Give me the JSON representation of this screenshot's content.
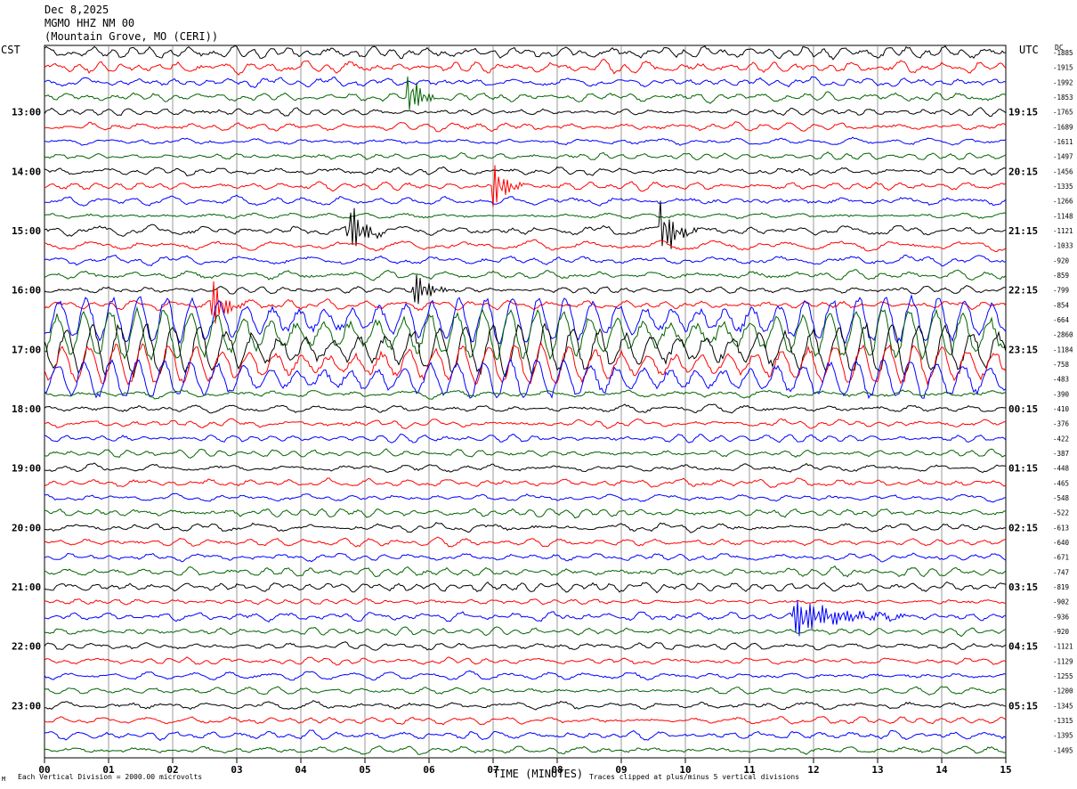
{
  "header": {
    "date": "Dec 8,2025",
    "station": "MGMO HHZ NM 00",
    "location": "(Mountain Grove, MO (CERI))"
  },
  "left_tz": "CST",
  "right_tz": "UTC",
  "dc_label": "DC",
  "footer": {
    "scale_note": "Each Vertical Division = 2000.00 microvolts",
    "clip_note": "Traces clipped at plus/minus 5 vertical divisions",
    "corner_mark": "M"
  },
  "colors": {
    "cycle": [
      "#000000",
      "#ff0000",
      "#0000ff",
      "#006400"
    ],
    "grid": "#808080"
  },
  "chart_data": {
    "type": "line",
    "title": "MGMO HHZ NM 00",
    "xlabel": "TIME (MINUTES)",
    "ylabel": "",
    "x_ticks": [
      "00",
      "01",
      "02",
      "03",
      "04",
      "05",
      "06",
      "07",
      "08",
      "09",
      "10",
      "11",
      "12",
      "13",
      "14",
      "15"
    ],
    "xlim": [
      0,
      15
    ],
    "grid": true,
    "trace_minutes": 15,
    "left_hour_labels": [
      "13:00",
      "14:00",
      "15:00",
      "16:00",
      "17:00",
      "18:00",
      "19:00",
      "20:00",
      "21:00",
      "22:00",
      "23:00"
    ],
    "right_hour_labels": [
      "19:15",
      "20:15",
      "21:15",
      "22:15",
      "23:15",
      "00:15",
      "01:15",
      "02:15",
      "03:15",
      "04:15",
      "05:15"
    ],
    "dc_offsets": [
      "-1885",
      "-1915",
      "-1992",
      "-1853",
      "-1765",
      "-1689",
      "-1611",
      "-1497",
      "-1456",
      "-1335",
      "-1266",
      "-1148",
      "-1121",
      "-1033",
      "-920",
      "-859",
      "-799",
      "-854",
      "-664",
      "-2860",
      "-1184",
      "-758",
      "-483",
      "-390",
      "-410",
      "-376",
      "-422",
      "-387",
      "-448",
      "-465",
      "-548",
      "-522",
      "-613",
      "-640",
      "-671",
      "-747",
      "-819",
      "-902",
      "-936",
      "-920",
      "-1121",
      "-1129",
      "-1255",
      "-1200",
      "-1345",
      "-1315",
      "-1395",
      "-1495"
    ],
    "events": [
      {
        "trace": 3,
        "minute": 5.7,
        "amplitude": 2.2,
        "duration_min": 0.5
      },
      {
        "trace": 9,
        "minute": 7.05,
        "amplitude": 2.0,
        "duration_min": 0.5
      },
      {
        "trace": 12,
        "minute": 4.75,
        "amplitude": 2.8,
        "duration_min": 0.55
      },
      {
        "trace": 12,
        "minute": 9.65,
        "amplitude": 2.6,
        "duration_min": 0.55
      },
      {
        "trace": 16,
        "minute": 5.8,
        "amplitude": 1.6,
        "duration_min": 0.6
      },
      {
        "trace": 17,
        "minute": 2.65,
        "amplitude": 2.2,
        "duration_min": 0.5
      },
      {
        "trace": 38,
        "minute": 11.7,
        "amplitude": 1.8,
        "duration_min": 1.8
      }
    ],
    "large_motion_traces": [
      18,
      19,
      20,
      21,
      22
    ]
  }
}
